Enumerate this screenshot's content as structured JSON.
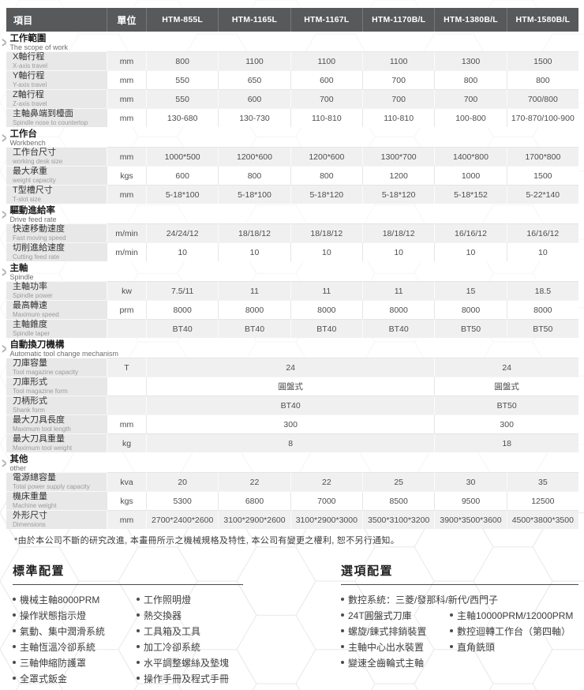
{
  "colors": {
    "header_bg": "#58595b",
    "header_text": "#ffffff",
    "label_cell_bg": "#e8e8e8",
    "shaded_row_bg": "#f0f0f0",
    "heading_rule": "#4a4a4a"
  },
  "icons": {
    "section_chevron": ">",
    "bullet": "dot"
  },
  "spec_table": {
    "columns": [
      "項目",
      "單位",
      "HTM-855L",
      "HTM-1165L",
      "HTM-1167L",
      "HTM-1170B/L",
      "HTM-1380B/L",
      "HTM-1580B/L"
    ],
    "sections": [
      {
        "title": "工作範圍",
        "subtitle": "The scope of work",
        "rows": [
          {
            "label": "X軸行程",
            "en": "X-axis travel",
            "unit": "mm",
            "values": [
              "800",
              "1100",
              "1100",
              "1100",
              "1300",
              "1500"
            ]
          },
          {
            "label": "Y軸行程",
            "en": "Y-axis travel",
            "unit": "mm",
            "values": [
              "550",
              "650",
              "600",
              "700",
              "800",
              "800"
            ]
          },
          {
            "label": "Z軸行程",
            "en": "Z-axis travel",
            "unit": "mm",
            "values": [
              "550",
              "600",
              "700",
              "700",
              "700",
              "700/800"
            ]
          },
          {
            "label": "主軸鼻端到檯面",
            "en": "Spindle nose to countertop",
            "unit": "mm",
            "values": [
              "130-680",
              "130-730",
              "110-810",
              "110-810",
              "100-800",
              "170-870/100-900"
            ]
          }
        ]
      },
      {
        "title": "工作台",
        "subtitle": "Workbench",
        "rows": [
          {
            "label": "工作台尺寸",
            "en": "working desk size",
            "unit": "mm",
            "values": [
              "1000*500",
              "1200*600",
              "1200*600",
              "1300*700",
              "1400*800",
              "1700*800"
            ]
          },
          {
            "label": "最大承重",
            "en": "weight capacity",
            "unit": "kgs",
            "values": [
              "600",
              "800",
              "800",
              "1200",
              "1000",
              "1500"
            ]
          },
          {
            "label": "T型槽尺寸",
            "en": "T-slot size",
            "unit": "mm",
            "values": [
              "5-18*100",
              "5-18*100",
              "5-18*120",
              "5-18*120",
              "5-18*152",
              "5-22*140"
            ]
          }
        ]
      },
      {
        "title": "驅動進給率",
        "subtitle": "Drive feed rate",
        "rows": [
          {
            "label": "快速移動速度",
            "en": "Fast moving speed",
            "unit": "m/min",
            "values": [
              "24/24/12",
              "18/18/12",
              "18/18/12",
              "18/18/12",
              "16/16/12",
              "16/16/12"
            ]
          },
          {
            "label": "切削進給速度",
            "en": "Cutting feed rate",
            "unit": "m/min",
            "values": [
              "10",
              "10",
              "10",
              "10",
              "10",
              "10"
            ]
          }
        ]
      },
      {
        "title": "主軸",
        "subtitle": "Spindle",
        "rows": [
          {
            "label": "主軸功率",
            "en": "Spindle power",
            "unit": "kw",
            "values": [
              "7.5/11",
              "11",
              "11",
              "11",
              "15",
              "18.5"
            ]
          },
          {
            "label": "最高轉速",
            "en": "Maximum speed",
            "unit": "prm",
            "values": [
              "8000",
              "8000",
              "8000",
              "8000",
              "8000",
              "8000"
            ]
          },
          {
            "label": "主軸錐度",
            "en": "Spindle taper",
            "unit": "",
            "values": [
              "BT40",
              "BT40",
              "BT40",
              "BT40",
              "BT50",
              "BT50"
            ]
          }
        ]
      },
      {
        "title": "自動換刀機構",
        "subtitle": "Automatic tool change mechanism",
        "rows": [
          {
            "label": "刀庫容量",
            "en": "Tool magazine capacity",
            "unit": "T",
            "values": [
              {
                "t": "24",
                "span": 4
              },
              {
                "t": "24",
                "span": 2
              }
            ]
          },
          {
            "label": "刀庫形式",
            "en": "Tool magazine form",
            "unit": "",
            "values": [
              {
                "t": "圓盤式",
                "span": 4
              },
              {
                "t": "圓盤式",
                "span": 2
              }
            ]
          },
          {
            "label": "刀柄形式",
            "en": "Shank form",
            "unit": "",
            "values": [
              {
                "t": "BT40",
                "span": 4
              },
              {
                "t": "BT50",
                "span": 2
              }
            ]
          },
          {
            "label": "最大刀具長度",
            "en": "Maximum tool length",
            "unit": "mm",
            "values": [
              {
                "t": "300",
                "span": 4
              },
              {
                "t": "300",
                "span": 2
              }
            ]
          },
          {
            "label": "最大刀具重量",
            "en": "Maximum tool weight",
            "unit": "kg",
            "values": [
              {
                "t": "8",
                "span": 4
              },
              {
                "t": "18",
                "span": 2
              }
            ]
          }
        ]
      },
      {
        "title": "其他",
        "subtitle": "other",
        "rows": [
          {
            "label": "電源總容量",
            "en": "Total power supply capacity",
            "unit": "kva",
            "values": [
              "20",
              "22",
              "22",
              "25",
              "30",
              "35"
            ]
          },
          {
            "label": "機床重量",
            "en": "Machine weight",
            "unit": "kgs",
            "values": [
              "5300",
              "6800",
              "7000",
              "8500",
              "9500",
              "12500"
            ]
          },
          {
            "label": "外形尺寸",
            "en": "Dimensions",
            "unit": "mm",
            "values": [
              "2700*2400*2600",
              "3100*2900*2600",
              "3100*2900*3000",
              "3500*3100*3200",
              "3900*3500*3600",
              "4500*3800*3500"
            ]
          }
        ]
      }
    ]
  },
  "footnote": "*由於本公司不斷的研究改進, 本畫冊所示之機械規格及特性, 本公司有變更之權利, 恕不另行通知。",
  "standard_config": {
    "title": "標準配置",
    "rows": [
      [
        "機械主軸8000PRM",
        "工作照明燈"
      ],
      [
        "操作狀態指示燈",
        "熱交換器"
      ],
      [
        "氣動、集中潤滑系統",
        "工具箱及工具"
      ],
      [
        "主軸恆溫冷卻系統",
        "加工冷卻系統"
      ],
      [
        "三軸伸縮防護罩",
        "水平調整螺絲及墊塊"
      ],
      [
        "全罩式鈑金",
        "操作手冊及程式手冊"
      ]
    ]
  },
  "optional_config": {
    "title": "選項配置",
    "full_row": "數控系統：三菱/發那科/新代/西門子",
    "rows": [
      [
        "24T圓盤式刀庫",
        "主軸10000PRM/12000PRM"
      ],
      [
        "螺旋/鍊式排銷裝置",
        "數控迴轉工作台（第四軸）"
      ],
      [
        "主軸中心出水裝置",
        "直角銑頭"
      ],
      [
        "變速全齒輪式主軸",
        ""
      ]
    ]
  }
}
